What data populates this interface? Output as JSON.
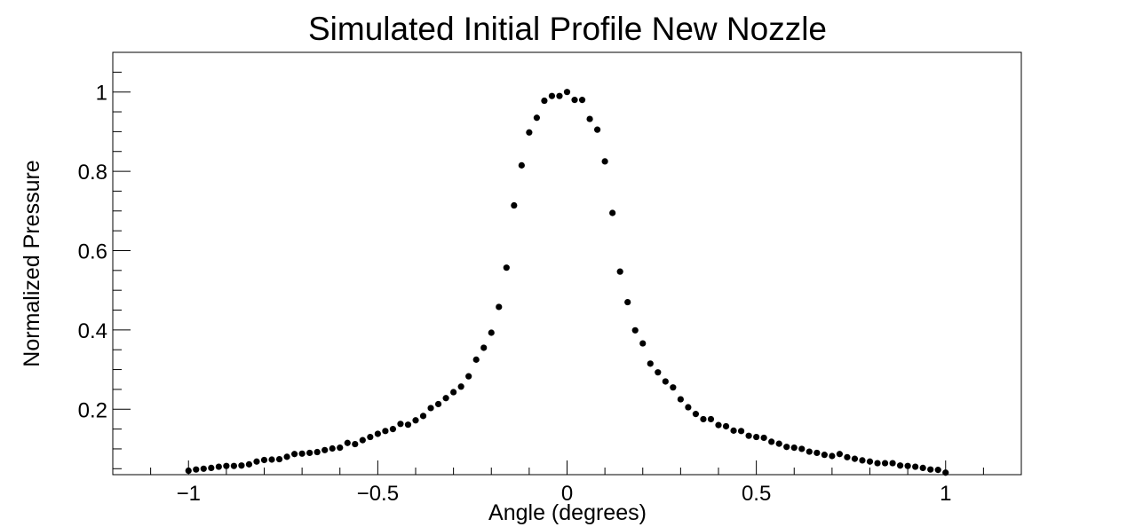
{
  "chart_data": {
    "type": "scatter",
    "title": "Simulated Initial Profile New Nozzle",
    "xlabel": "Angle (degrees)",
    "ylabel": "Normalized Pressure",
    "xlim": [
      -1.2,
      1.2
    ],
    "ylim": [
      0.035,
      1.1
    ],
    "x_ticks": [
      -1,
      -0.5,
      0,
      0.5,
      1
    ],
    "x_tick_labels": [
      "−1",
      "−0.5",
      "0",
      "0.5",
      "1"
    ],
    "y_ticks": [
      0.2,
      0.4,
      0.6,
      0.8,
      1
    ],
    "y_tick_labels": [
      "0.2",
      "0.4",
      "0.6",
      "0.8",
      "1"
    ],
    "grid": false,
    "marker_color": "#000000",
    "series": [
      {
        "x": [
          -1.0,
          -0.98,
          -0.96,
          -0.94,
          -0.92,
          -0.9,
          -0.88,
          -0.86,
          -0.84,
          -0.82,
          -0.8,
          -0.78,
          -0.76,
          -0.74,
          -0.72,
          -0.7,
          -0.68,
          -0.66,
          -0.64,
          -0.62,
          -0.6,
          -0.58,
          -0.56,
          -0.54,
          -0.52,
          -0.5,
          -0.48,
          -0.46,
          -0.44,
          -0.42,
          -0.4,
          -0.38,
          -0.36,
          -0.34,
          -0.32,
          -0.3,
          -0.28,
          -0.26,
          -0.24,
          -0.22,
          -0.2,
          -0.18,
          -0.16,
          -0.14,
          -0.12,
          -0.1,
          -0.08,
          -0.06,
          -0.04,
          -0.02,
          0.0,
          0.02,
          0.04,
          0.06,
          0.08,
          0.1,
          0.12,
          0.14,
          0.16,
          0.18,
          0.2,
          0.22,
          0.24,
          0.26,
          0.28,
          0.3,
          0.32,
          0.34,
          0.36,
          0.38,
          0.4,
          0.42,
          0.44,
          0.46,
          0.48,
          0.5,
          0.52,
          0.54,
          0.56,
          0.58,
          0.6,
          0.62,
          0.64,
          0.66,
          0.68,
          0.7,
          0.72,
          0.74,
          0.76,
          0.78,
          0.8,
          0.82,
          0.84,
          0.86,
          0.88,
          0.9,
          0.92,
          0.94,
          0.96,
          0.98,
          1.0
        ],
        "y": [
          0.045,
          0.048,
          0.05,
          0.052,
          0.055,
          0.057,
          0.057,
          0.058,
          0.061,
          0.068,
          0.072,
          0.073,
          0.074,
          0.08,
          0.087,
          0.088,
          0.09,
          0.092,
          0.097,
          0.101,
          0.103,
          0.115,
          0.112,
          0.122,
          0.13,
          0.138,
          0.145,
          0.15,
          0.163,
          0.161,
          0.172,
          0.183,
          0.203,
          0.213,
          0.228,
          0.243,
          0.257,
          0.283,
          0.325,
          0.355,
          0.393,
          0.458,
          0.557,
          0.714,
          0.815,
          0.898,
          0.935,
          0.978,
          0.99,
          0.99,
          1.0,
          0.98,
          0.98,
          0.932,
          0.905,
          0.825,
          0.695,
          0.547,
          0.47,
          0.399,
          0.366,
          0.315,
          0.293,
          0.27,
          0.255,
          0.225,
          0.205,
          0.188,
          0.175,
          0.175,
          0.16,
          0.157,
          0.146,
          0.145,
          0.133,
          0.13,
          0.128,
          0.118,
          0.113,
          0.105,
          0.103,
          0.1,
          0.093,
          0.09,
          0.085,
          0.082,
          0.087,
          0.079,
          0.075,
          0.071,
          0.068,
          0.064,
          0.064,
          0.064,
          0.058,
          0.057,
          0.055,
          0.052,
          0.048,
          0.047,
          0.04
        ]
      }
    ]
  }
}
